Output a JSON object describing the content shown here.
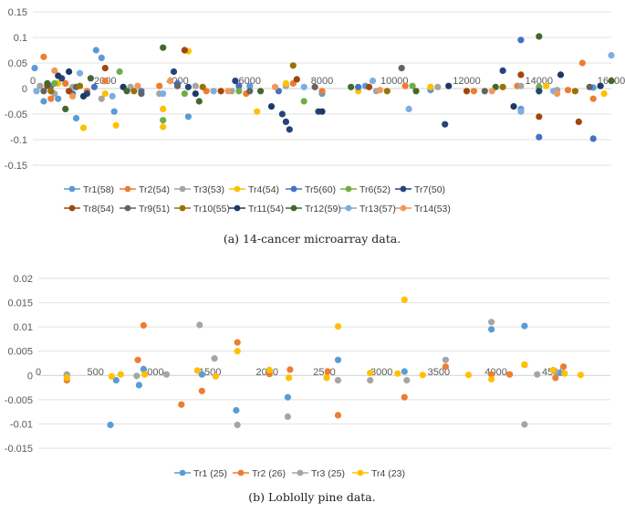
{
  "chart_data": [
    {
      "type": "scatter",
      "caption": "(a) 14-cancer microarray data.",
      "xlim": [
        0,
        16000
      ],
      "ylim": [
        -0.15,
        0.15
      ],
      "xticks": [
        "0",
        "2000",
        "4000",
        "6000",
        "8000",
        "10000",
        "12000",
        "14000",
        "16000"
      ],
      "yticks": [
        "0.15",
        "0.1",
        "0.05",
        "0",
        "-0.05",
        "-0.1",
        "-0.15"
      ],
      "grid": true,
      "legend": "bottom",
      "series": [
        {
          "name": "Tr1(58)",
          "color": "#5B9BD5",
          "points": [
            [
              50,
              0.04
            ],
            [
              300,
              -0.025
            ],
            [
              700,
              -0.02
            ],
            [
              900,
              0.01
            ],
            [
              1200,
              -0.058
            ],
            [
              1750,
              0.075
            ],
            [
              1900,
              0.06
            ],
            [
              2250,
              -0.045
            ],
            [
              4300,
              -0.055
            ],
            [
              6000,
              0.005
            ],
            [
              8000,
              -0.01
            ],
            [
              9200,
              0.005
            ],
            [
              11000,
              -0.003
            ],
            [
              13500,
              -0.04
            ],
            [
              14000,
              -0.005
            ],
            [
              15500,
              0.002
            ]
          ]
        },
        {
          "name": "Tr2(54)",
          "color": "#ED7D31",
          "points": [
            [
              300,
              0.062
            ],
            [
              500,
              -0.02
            ],
            [
              900,
              0.01
            ],
            [
              1500,
              -0.005
            ],
            [
              2000,
              0.015
            ],
            [
              3500,
              0.005
            ],
            [
              4200,
              0.075
            ],
            [
              4800,
              -0.005
            ],
            [
              5900,
              -0.01
            ],
            [
              7200,
              0.01
            ],
            [
              8000,
              -0.005
            ],
            [
              10300,
              0.005
            ],
            [
              12200,
              -0.005
            ],
            [
              13400,
              0.005
            ],
            [
              14800,
              -0.003
            ],
            [
              15200,
              0.05
            ],
            [
              15500,
              -0.02
            ]
          ]
        },
        {
          "name": "Tr3(53)",
          "color": "#A5A5A5",
          "points": [
            [
              200,
              0.005
            ],
            [
              600,
              -0.01
            ],
            [
              1100,
              0.003
            ],
            [
              1900,
              -0.02
            ],
            [
              2700,
              0.003
            ],
            [
              3500,
              -0.01
            ],
            [
              4500,
              0.005
            ],
            [
              5500,
              -0.005
            ],
            [
              7000,
              0.005
            ],
            [
              9500,
              -0.005
            ],
            [
              11200,
              0.003
            ],
            [
              13500,
              0.005
            ],
            [
              14500,
              -0.003
            ]
          ]
        },
        {
          "name": "Tr4(54)",
          "color": "#FFC000",
          "points": [
            [
              700,
              0.01
            ],
            [
              1400,
              -0.077
            ],
            [
              2000,
              -0.01
            ],
            [
              2300,
              -0.072
            ],
            [
              3600,
              -0.075
            ],
            [
              3600,
              -0.04
            ],
            [
              4300,
              0.073
            ],
            [
              5000,
              -0.005
            ],
            [
              6200,
              -0.045
            ],
            [
              7000,
              0.01
            ],
            [
              9000,
              -0.005
            ],
            [
              11000,
              0.003
            ],
            [
              14200,
              0.005
            ],
            [
              15800,
              -0.01
            ]
          ]
        },
        {
          "name": "Tr5(60)",
          "color": "#4472C4",
          "points": [
            [
              500,
              0.005
            ],
            [
              1100,
              -0.01
            ],
            [
              1700,
              0.003
            ],
            [
              3000,
              -0.005
            ],
            [
              4000,
              0.01
            ],
            [
              5700,
              0.005
            ],
            [
              6800,
              -0.005
            ],
            [
              9000,
              0.003
            ],
            [
              13500,
              0.095
            ],
            [
              14000,
              -0.095
            ],
            [
              15500,
              -0.098
            ]
          ]
        },
        {
          "name": "Tr6(52)",
          "color": "#70AD47",
          "points": [
            [
              600,
              0.01
            ],
            [
              1000,
              -0.005
            ],
            [
              2400,
              0.033
            ],
            [
              3600,
              -0.062
            ],
            [
              4200,
              -0.01
            ],
            [
              5700,
              -0.005
            ],
            [
              7500,
              -0.025
            ],
            [
              10500,
              0.005
            ],
            [
              14000,
              0.003
            ]
          ]
        },
        {
          "name": "Tr7(50)",
          "color": "#264478",
          "points": [
            [
              800,
              0.02
            ],
            [
              1500,
              -0.01
            ],
            [
              3900,
              0.033
            ],
            [
              4300,
              0.003
            ],
            [
              5600,
              0.015
            ],
            [
              6900,
              -0.05
            ],
            [
              7000,
              -0.065
            ],
            [
              7100,
              -0.08
            ],
            [
              7900,
              -0.045
            ],
            [
              11400,
              -0.07
            ],
            [
              13000,
              0.035
            ],
            [
              14000,
              -0.005
            ]
          ]
        },
        {
          "name": "Tr8(54)",
          "color": "#9E480E",
          "points": [
            [
              400,
              0.005
            ],
            [
              1000,
              -0.005
            ],
            [
              2000,
              0.04
            ],
            [
              4200,
              0.075
            ],
            [
              5200,
              -0.005
            ],
            [
              7300,
              0.018
            ],
            [
              9300,
              0.003
            ],
            [
              12000,
              -0.005
            ],
            [
              13500,
              0.027
            ],
            [
              14000,
              -0.055
            ],
            [
              15100,
              -0.065
            ]
          ]
        },
        {
          "name": "Tr9(51)",
          "color": "#636363",
          "points": [
            [
              300,
              -0.005
            ],
            [
              1200,
              0.003
            ],
            [
              3000,
              -0.01
            ],
            [
              4000,
              0.005
            ],
            [
              6000,
              -0.005
            ],
            [
              7800,
              0.003
            ],
            [
              10200,
              0.04
            ],
            [
              12500,
              -0.005
            ],
            [
              15400,
              0.003
            ]
          ]
        },
        {
          "name": "Tr10(55)",
          "color": "#997300",
          "points": [
            [
              500,
              -0.005
            ],
            [
              1300,
              0.005
            ],
            [
              2800,
              -0.005
            ],
            [
              4700,
              0.003
            ],
            [
              7200,
              0.045
            ],
            [
              9800,
              -0.005
            ],
            [
              13000,
              0.003
            ],
            [
              15000,
              -0.005
            ]
          ]
        },
        {
          "name": "Tr11(54)",
          "color": "#203864",
          "points": [
            [
              700,
              0.025
            ],
            [
              1000,
              0.033
            ],
            [
              1400,
              -0.015
            ],
            [
              2500,
              0.003
            ],
            [
              4500,
              -0.01
            ],
            [
              6600,
              -0.035
            ],
            [
              8000,
              -0.045
            ],
            [
              11500,
              0.005
            ],
            [
              13300,
              -0.035
            ],
            [
              14600,
              0.027
            ],
            [
              15700,
              0.005
            ]
          ]
        },
        {
          "name": "Tr12(59)",
          "color": "#43682B",
          "points": [
            [
              400,
              0.01
            ],
            [
              900,
              -0.04
            ],
            [
              1600,
              0.02
            ],
            [
              2600,
              -0.005
            ],
            [
              3600,
              0.08
            ],
            [
              4600,
              -0.025
            ],
            [
              6300,
              -0.005
            ],
            [
              8800,
              0.003
            ],
            [
              10600,
              -0.005
            ],
            [
              12800,
              0.003
            ],
            [
              14000,
              0.102
            ],
            [
              16000,
              0.015
            ]
          ]
        },
        {
          "name": "Tr13(57)",
          "color": "#7CAFDD",
          "points": [
            [
              100,
              -0.005
            ],
            [
              1300,
              0.03
            ],
            [
              2200,
              -0.015
            ],
            [
              3600,
              -0.01
            ],
            [
              5000,
              -0.005
            ],
            [
              7500,
              0.003
            ],
            [
              9400,
              0.015
            ],
            [
              10400,
              -0.04
            ],
            [
              13500,
              -0.045
            ],
            [
              14400,
              -0.005
            ],
            [
              16000,
              0.065
            ]
          ]
        },
        {
          "name": "Tr14(53)",
          "color": "#F1975A",
          "points": [
            [
              600,
              0.035
            ],
            [
              1100,
              -0.015
            ],
            [
              2900,
              0.005
            ],
            [
              3800,
              0.015
            ],
            [
              5400,
              -0.005
            ],
            [
              6700,
              0.003
            ],
            [
              9600,
              -0.003
            ],
            [
              12700,
              -0.005
            ],
            [
              14500,
              -0.01
            ]
          ]
        }
      ]
    },
    {
      "type": "scatter",
      "caption": "(b) Loblolly pine data.",
      "xlim": [
        0,
        5000
      ],
      "ylim": [
        -0.015,
        0.02
      ],
      "xticks": [
        "0",
        "500",
        "1000",
        "1500",
        "2000",
        "2500",
        "3000",
        "3500",
        "4000",
        "4500"
      ],
      "yticks": [
        "0.02",
        "0.015",
        "0.01",
        "0.005",
        "0",
        "-0.005",
        "-0.01",
        "-0.015"
      ],
      "grid": true,
      "legend": "bottom",
      "series": [
        {
          "name": "Tr1 (25)",
          "color": "#5B9BD5",
          "points": [
            [
              250,
              0
            ],
            [
              630,
              -0.0102
            ],
            [
              680,
              -0.001
            ],
            [
              880,
              -0.002
            ],
            [
              920,
              0.0013
            ],
            [
              1430,
              0.0002
            ],
            [
              1730,
              -0.0072
            ],
            [
              2180,
              -0.0045
            ],
            [
              2620,
              0.0032
            ],
            [
              3200,
              0.0008
            ],
            [
              3960,
              0.0095
            ],
            [
              4250,
              0.0102
            ],
            [
              4560,
              0.0005
            ]
          ]
        },
        {
          "name": "Tr2 (26)",
          "color": "#ED7D31",
          "points": [
            [
              250,
              -0.001
            ],
            [
              870,
              0.0032
            ],
            [
              920,
              0.0103
            ],
            [
              1250,
              -0.006
            ],
            [
              1430,
              -0.0032
            ],
            [
              1740,
              0.0068
            ],
            [
              2020,
              0.0003
            ],
            [
              2200,
              0.0012
            ],
            [
              2530,
              0.0008
            ],
            [
              2620,
              -0.0082
            ],
            [
              3200,
              -0.0045
            ],
            [
              3560,
              0.0018
            ],
            [
              3960,
              0.0002
            ],
            [
              4120,
              0.0002
            ],
            [
              4250,
              0.0022
            ],
            [
              4520,
              -0.0005
            ],
            [
              4590,
              0.0018
            ]
          ]
        },
        {
          "name": "Tr3 (25)",
          "color": "#A5A5A5",
          "points": [
            [
              250,
              0.0002
            ],
            [
              860,
              -0.0001
            ],
            [
              1120,
              0.0002
            ],
            [
              1410,
              0.0104
            ],
            [
              1540,
              0.0035
            ],
            [
              1740,
              -0.0102
            ],
            [
              2180,
              -0.0085
            ],
            [
              2620,
              -0.001
            ],
            [
              2900,
              -0.001
            ],
            [
              3220,
              -0.001
            ],
            [
              3560,
              0.0032
            ],
            [
              3960,
              0.011
            ],
            [
              4250,
              -0.0101
            ],
            [
              4360,
              0.0002
            ],
            [
              4520,
              0.0008
            ]
          ]
        },
        {
          "name": "Tr4 (23)",
          "color": "#FFC000",
          "points": [
            [
              250,
              -0.0005
            ],
            [
              640,
              -0.0002
            ],
            [
              720,
              0.0002
            ],
            [
              930,
              0.0002
            ],
            [
              1390,
              0.001
            ],
            [
              1550,
              -0.0002
            ],
            [
              1740,
              0.005
            ],
            [
              2020,
              0.0011
            ],
            [
              2190,
              -0.0005
            ],
            [
              2520,
              -0.0005
            ],
            [
              2620,
              0.0101
            ],
            [
              2900,
              0.0005
            ],
            [
              3140,
              0.0004
            ],
            [
              3200,
              0.0156
            ],
            [
              3360,
              0.0001
            ],
            [
              3760,
              0.0001
            ],
            [
              3960,
              -0.0008
            ],
            [
              4250,
              0.0022
            ],
            [
              4500,
              0.0011
            ],
            [
              4600,
              0.0004
            ],
            [
              4740,
              0.0001
            ]
          ]
        }
      ]
    }
  ]
}
